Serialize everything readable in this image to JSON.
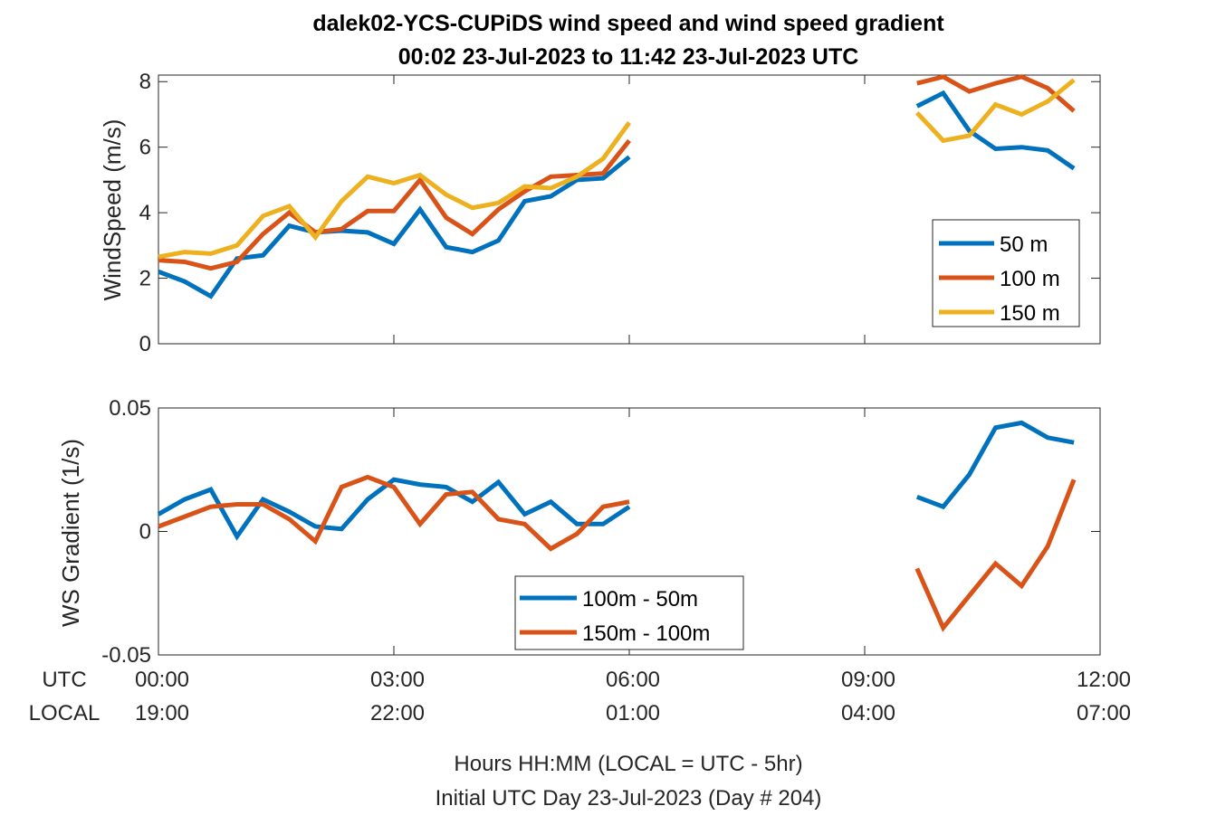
{
  "title": {
    "line1": "dalek02-YCS-CUPiDS  wind speed and wind speed gradient",
    "line2": "00:02 23-Jul-2023 to 11:42 23-Jul-2023  UTC"
  },
  "xaxis": {
    "row_labels": [
      "UTC",
      "LOCAL"
    ],
    "utc_ticks": [
      "00:00",
      "03:00",
      "06:00",
      "09:00",
      "12:00"
    ],
    "local_ticks": [
      "19:00",
      "22:00",
      "01:00",
      "04:00",
      "07:00"
    ],
    "label_line1": "Hours HH:MM  (LOCAL = UTC - 5hr)",
    "label_line2": "Initial UTC Day 23-Jul-2023 (Day # 204)"
  },
  "colors": {
    "blue": "#0072BD",
    "orange": "#D95319",
    "yellow": "#EDB120"
  },
  "chart_data": [
    {
      "type": "line",
      "ylabel": "WindSpeed (m/s)",
      "ylim": [
        0,
        8.2
      ],
      "yticks": [
        "0",
        "2",
        "4",
        "6",
        "8"
      ],
      "xlim": [
        0,
        12
      ],
      "legend_location": "lower-right",
      "series": [
        {
          "name": "50 m",
          "color": "#0072BD",
          "segments": [
            {
              "x": [
                0.0,
                0.333,
                0.667,
                1.0,
                1.333,
                1.667,
                2.0,
                2.333,
                2.667,
                3.0,
                3.333,
                3.667,
                4.0,
                4.333,
                4.667,
                5.0,
                5.333,
                5.667,
                6.0
              ],
              "y": [
                2.2,
                1.9,
                1.45,
                2.6,
                2.7,
                3.6,
                3.4,
                3.45,
                3.4,
                3.05,
                4.1,
                2.95,
                2.8,
                3.15,
                4.35,
                4.5,
                5.0,
                5.05,
                5.7
              ]
            },
            {
              "x": [
                9.667,
                10.0,
                10.333,
                10.667,
                11.0,
                11.333,
                11.667
              ],
              "y": [
                7.25,
                7.65,
                6.5,
                5.95,
                6.0,
                5.9,
                5.35
              ]
            }
          ]
        },
        {
          "name": "100 m",
          "color": "#D95319",
          "segments": [
            {
              "x": [
                0.0,
                0.333,
                0.667,
                1.0,
                1.333,
                1.667,
                2.0,
                2.333,
                2.667,
                3.0,
                3.333,
                3.667,
                4.0,
                4.333,
                4.667,
                5.0,
                5.333,
                5.667,
                6.0
              ],
              "y": [
                2.55,
                2.5,
                2.3,
                2.5,
                3.35,
                4.0,
                3.4,
                3.5,
                4.05,
                4.05,
                5.0,
                3.85,
                3.35,
                4.1,
                4.65,
                5.1,
                5.15,
                5.2,
                6.2
              ]
            },
            {
              "x": [
                9.667,
                10.0,
                10.333,
                10.667,
                11.0,
                11.333,
                11.667
              ],
              "y": [
                7.95,
                8.15,
                7.7,
                7.95,
                8.15,
                7.8,
                7.1
              ]
            }
          ]
        },
        {
          "name": "150 m",
          "color": "#EDB120",
          "segments": [
            {
              "x": [
                0.0,
                0.333,
                0.667,
                1.0,
                1.333,
                1.667,
                2.0,
                2.333,
                2.667,
                3.0,
                3.333,
                3.667,
                4.0,
                4.333,
                4.667,
                5.0,
                5.333,
                5.667,
                6.0
              ],
              "y": [
                2.65,
                2.8,
                2.75,
                3.0,
                3.9,
                4.2,
                3.25,
                4.35,
                5.1,
                4.9,
                5.15,
                4.55,
                4.15,
                4.3,
                4.8,
                4.75,
                5.1,
                5.65,
                6.75
              ]
            },
            {
              "x": [
                9.667,
                10.0,
                10.333,
                10.667,
                11.0,
                11.333,
                11.667
              ],
              "y": [
                7.05,
                6.2,
                6.35,
                7.3,
                7.0,
                7.4,
                8.05
              ]
            }
          ]
        }
      ]
    },
    {
      "type": "line",
      "ylabel": "WS Gradient (1/s)",
      "ylim": [
        -0.05,
        0.05
      ],
      "yticks": [
        "-0.05",
        "0",
        "0.05"
      ],
      "xlim": [
        0,
        12
      ],
      "legend_location": "bottom-center",
      "series": [
        {
          "name": "100m - 50m",
          "color": "#0072BD",
          "segments": [
            {
              "x": [
                0.0,
                0.333,
                0.667,
                1.0,
                1.333,
                1.667,
                2.0,
                2.333,
                2.667,
                3.0,
                3.333,
                3.667,
                4.0,
                4.333,
                4.667,
                5.0,
                5.333,
                5.667,
                6.0
              ],
              "y": [
                0.007,
                0.013,
                0.017,
                -0.002,
                0.013,
                0.008,
                0.002,
                0.001,
                0.013,
                0.021,
                0.019,
                0.018,
                0.012,
                0.02,
                0.007,
                0.012,
                0.003,
                0.003,
                0.01
              ]
            },
            {
              "x": [
                9.667,
                10.0,
                10.333,
                10.667,
                11.0,
                11.333,
                11.667
              ],
              "y": [
                0.014,
                0.01,
                0.023,
                0.042,
                0.044,
                0.038,
                0.036
              ]
            }
          ]
        },
        {
          "name": "150m - 100m",
          "color": "#D95319",
          "segments": [
            {
              "x": [
                0.0,
                0.333,
                0.667,
                1.0,
                1.333,
                1.667,
                2.0,
                2.333,
                2.667,
                3.0,
                3.333,
                3.667,
                4.0,
                4.333,
                4.667,
                5.0,
                5.333,
                5.667,
                6.0
              ],
              "y": [
                0.002,
                0.006,
                0.01,
                0.011,
                0.011,
                0.005,
                -0.004,
                0.018,
                0.022,
                0.018,
                0.003,
                0.015,
                0.016,
                0.005,
                0.003,
                -0.007,
                -0.001,
                0.01,
                0.012
              ]
            },
            {
              "x": [
                9.667,
                10.0,
                10.333,
                10.667,
                11.0,
                11.333,
                11.667
              ],
              "y": [
                -0.015,
                -0.039,
                -0.026,
                -0.013,
                -0.022,
                -0.006,
                0.021
              ]
            }
          ]
        }
      ]
    }
  ]
}
